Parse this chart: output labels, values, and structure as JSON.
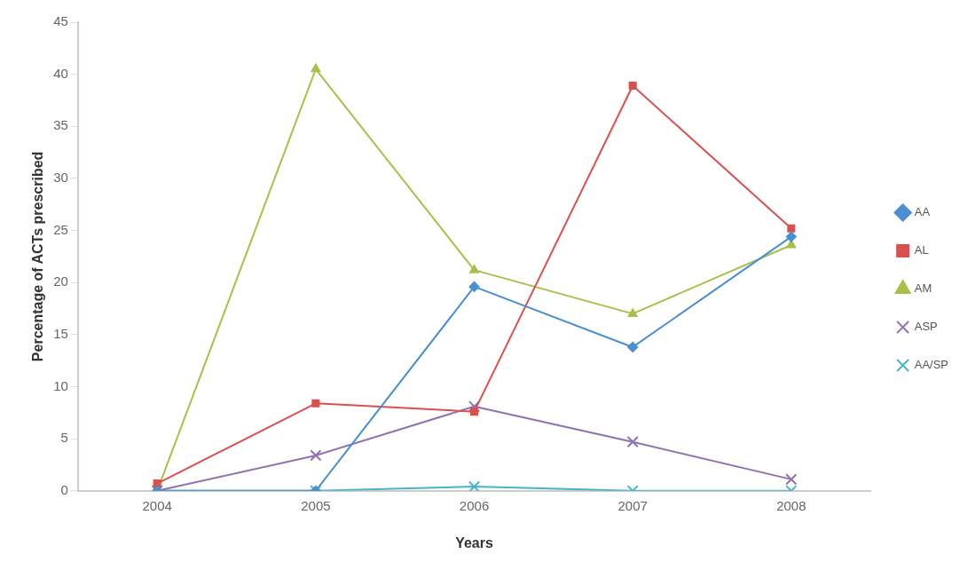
{
  "chart_data": {
    "type": "line",
    "xlabel": "Years",
    "ylabel": "Percentage of ACTs prescribed",
    "categories": [
      "2004",
      "2005",
      "2006",
      "2007",
      "2008"
    ],
    "series": [
      {
        "name": "AA",
        "color": "#4a8fcf",
        "marker": "diamond",
        "values": [
          0,
          0,
          19.6,
          13.8,
          24.4
        ]
      },
      {
        "name": "AL",
        "color": "#d9504d",
        "marker": "square",
        "values": [
          0.7,
          8.4,
          7.6,
          38.9,
          25.2
        ]
      },
      {
        "name": "AM",
        "color": "#a8c04a",
        "marker": "triangle",
        "values": [
          0,
          40.5,
          21.2,
          17.0,
          23.6
        ]
      },
      {
        "name": "ASP",
        "color": "#8f72b0",
        "marker": "cross",
        "values": [
          0,
          3.4,
          8.1,
          4.7,
          1.1
        ]
      },
      {
        "name": "AA/SP",
        "color": "#4bb3c8",
        "marker": "cross",
        "values": [
          0,
          0,
          0.4,
          0,
          0
        ]
      }
    ],
    "ylim": [
      0,
      45
    ],
    "yticks": [
      0,
      5,
      10,
      15,
      20,
      25,
      30,
      35,
      40,
      45
    ],
    "grid": false,
    "legend": "right",
    "line_style": "solid"
  }
}
